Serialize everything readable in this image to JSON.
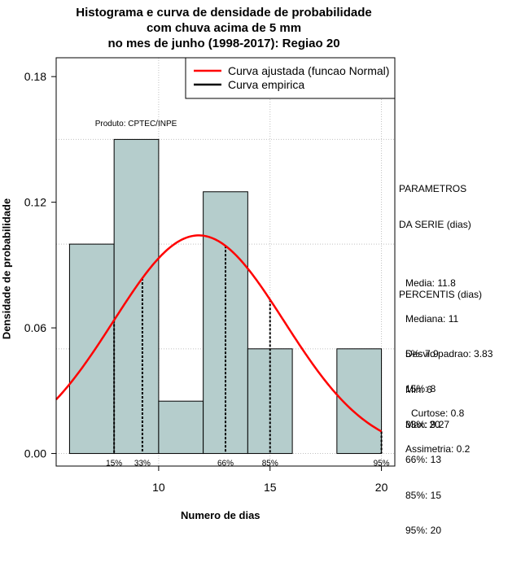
{
  "title_lines": [
    "Histograma e curva de densidade de probabilidade",
    "com chuva acima de 5 mm",
    "no mes de junho (1998-2017): Regiao 20"
  ],
  "producer": "Produto: CPTEC/INPE",
  "parametros": {
    "header": [
      "PARAMETROS",
      "DA SERIE (dias)"
    ],
    "lines": [
      "Media: 11.8",
      "Mediana: 11",
      "Desvio padrao: 3.83",
      "Min: 6",
      "Max: 20"
    ]
  },
  "percentis": {
    "header": "PERCENTIS (dias)",
    "lines": [
      "5%: 7.9",
      "15%: 8",
      "33%: 9.27",
      "66%: 13",
      "85%: 15",
      "95%: 20"
    ]
  },
  "shape": {
    "lines": [
      "Curtose: 0.8",
      "Assimetria: 0.2"
    ]
  },
  "chart_data": {
    "type": "bar",
    "title": "Histograma e curva de densidade de probabilidade com chuva acima de 5 mm no mes de junho (1998-2017): Regiao 20",
    "xlabel": "Numero de dias",
    "ylabel": "Densidade de probabilidade",
    "xlim": [
      5.4,
      20.6
    ],
    "ylim": [
      -0.006,
      0.189
    ],
    "xticks": [
      10,
      15,
      20
    ],
    "yticks": [
      0.0,
      0.06,
      0.12,
      0.18
    ],
    "ytick_labels": [
      "0.00",
      "0.06",
      "0.12",
      "0.18"
    ],
    "bins": [
      {
        "start": 6,
        "end": 8,
        "density": 0.1
      },
      {
        "start": 8,
        "end": 10,
        "density": 0.15
      },
      {
        "start": 10,
        "end": 12,
        "density": 0.025
      },
      {
        "start": 12,
        "end": 14,
        "density": 0.125
      },
      {
        "start": 14,
        "end": 16,
        "density": 0.05
      },
      {
        "start": 16,
        "end": 18,
        "density": 0.0
      },
      {
        "start": 18,
        "end": 20,
        "density": 0.05
      }
    ],
    "normal_fit": {
      "mean": 11.8,
      "sd": 3.83,
      "label": "Curva ajustada (funcao Normal)",
      "color": "#ff0000"
    },
    "empirical_label": "Curva empirica",
    "empirical_color": "#000000",
    "percentile_markers": [
      {
        "label": "15%",
        "x": 8
      },
      {
        "label": "33%",
        "x": 9.27
      },
      {
        "label": "66%",
        "x": 13
      },
      {
        "label": "85%",
        "x": 15
      },
      {
        "label": "95%",
        "x": 20
      }
    ],
    "bar_color": "#b5cdcc",
    "grid": true,
    "legend_position": "top-right"
  }
}
